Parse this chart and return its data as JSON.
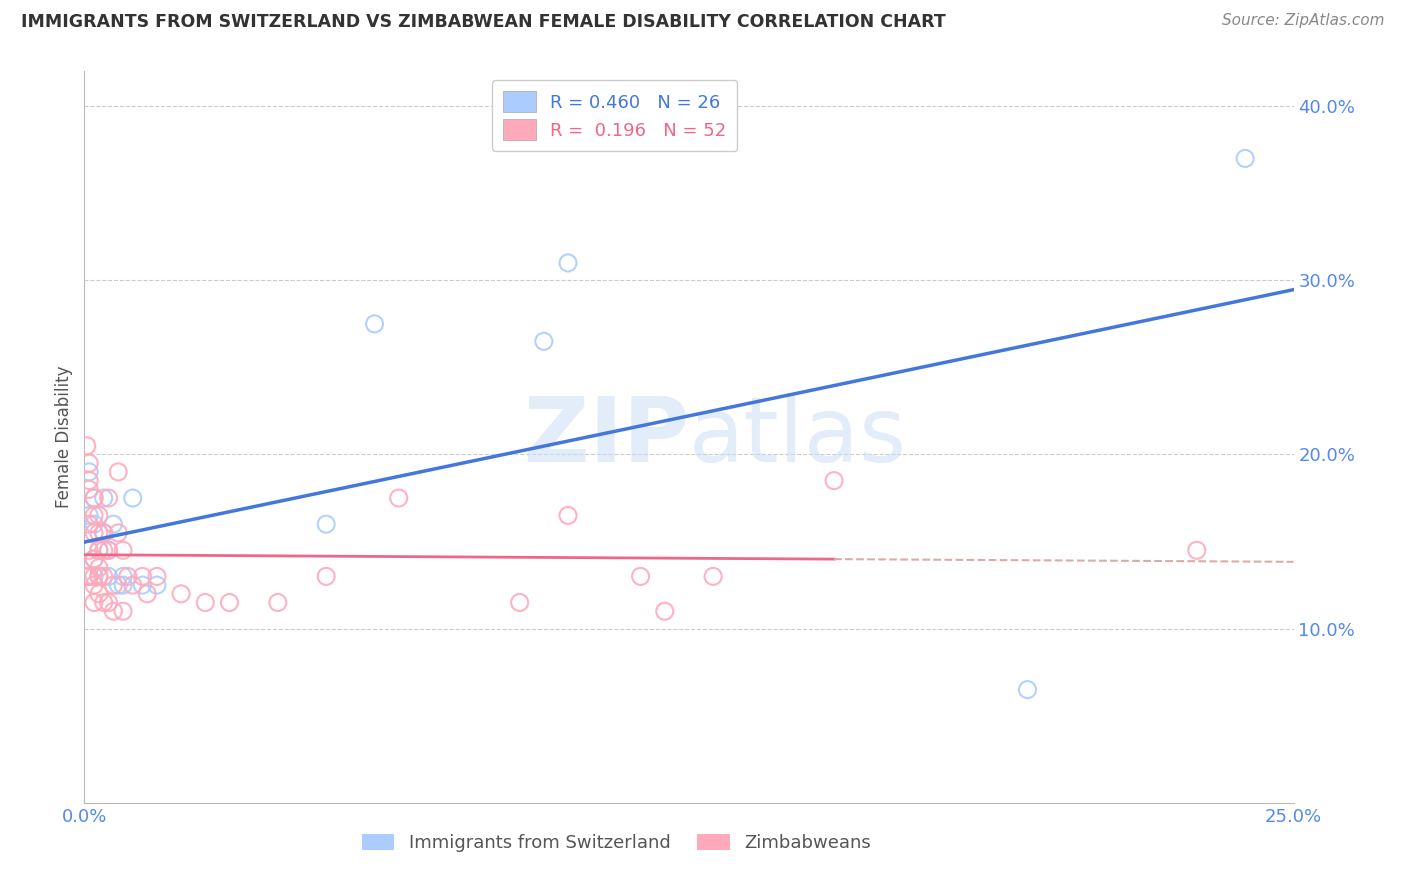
{
  "title": "IMMIGRANTS FROM SWITZERLAND VS ZIMBABWEAN FEMALE DISABILITY CORRELATION CHART",
  "source": "Source: ZipAtlas.com",
  "ylabel": "Female Disability",
  "xlim": [
    0.0,
    0.25
  ],
  "ylim": [
    0.0,
    0.42
  ],
  "yticks": [
    0.1,
    0.2,
    0.3,
    0.4
  ],
  "ytick_labels": [
    "10.0%",
    "20.0%",
    "30.0%",
    "40.0%"
  ],
  "xtick_positions": [
    0.0,
    0.25
  ],
  "xtick_labels": [
    "0.0%",
    "25.0%"
  ],
  "axis_color": "#5588ee",
  "grid_color": "#cccccc",
  "background_color": "#ffffff",
  "swiss_color": "#aaccff",
  "zimb_color": "#ffaabb",
  "swiss_line_color": "#4477dd",
  "zimb_line_color": "#ee6688",
  "zimb_line_dashed_color": "#ddaaaa",
  "legend_r1": "0.460",
  "legend_n1": "26",
  "legend_r2": "0.196",
  "legend_n2": "52",
  "swiss_label": "Immigrants from Switzerland",
  "zimb_label": "Zimbabweans",
  "swiss_x": [
    0.001,
    0.001,
    0.001,
    0.002,
    0.002,
    0.003,
    0.004,
    0.004,
    0.005,
    0.006,
    0.007,
    0.008,
    0.01,
    0.015,
    0.05,
    0.06,
    0.095,
    0.1,
    0.195,
    0.24,
    0.001,
    0.002,
    0.003,
    0.005,
    0.008,
    0.012
  ],
  "swiss_y": [
    0.19,
    0.165,
    0.13,
    0.175,
    0.16,
    0.13,
    0.175,
    0.155,
    0.13,
    0.16,
    0.125,
    0.13,
    0.175,
    0.125,
    0.16,
    0.275,
    0.265,
    0.31,
    0.065,
    0.37,
    0.13,
    0.14,
    0.145,
    0.145,
    0.125,
    0.125
  ],
  "zimb_x": [
    0.0005,
    0.001,
    0.001,
    0.001,
    0.001,
    0.001,
    0.002,
    0.002,
    0.002,
    0.002,
    0.002,
    0.003,
    0.003,
    0.003,
    0.003,
    0.004,
    0.004,
    0.004,
    0.005,
    0.005,
    0.006,
    0.007,
    0.007,
    0.008,
    0.009,
    0.01,
    0.012,
    0.013,
    0.015,
    0.02,
    0.025,
    0.03,
    0.04,
    0.05,
    0.065,
    0.09,
    0.1,
    0.115,
    0.12,
    0.13,
    0.155,
    0.23,
    0.0005,
    0.001,
    0.002,
    0.002,
    0.003,
    0.003,
    0.004,
    0.005,
    0.006,
    0.008
  ],
  "zimb_y": [
    0.205,
    0.195,
    0.185,
    0.18,
    0.16,
    0.145,
    0.175,
    0.165,
    0.155,
    0.14,
    0.13,
    0.165,
    0.155,
    0.145,
    0.135,
    0.155,
    0.145,
    0.13,
    0.175,
    0.145,
    0.125,
    0.19,
    0.155,
    0.145,
    0.13,
    0.125,
    0.13,
    0.12,
    0.13,
    0.12,
    0.115,
    0.115,
    0.115,
    0.13,
    0.175,
    0.115,
    0.165,
    0.13,
    0.11,
    0.13,
    0.185,
    0.145,
    0.13,
    0.13,
    0.125,
    0.115,
    0.13,
    0.12,
    0.115,
    0.115,
    0.11,
    0.11
  ]
}
